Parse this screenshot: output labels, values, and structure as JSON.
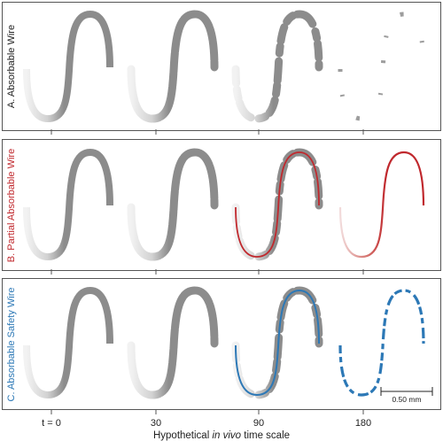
{
  "panels": [
    {
      "id": "absorbable",
      "label": "A. Absorbable Wire",
      "label_color": "#222222",
      "core_color": null
    },
    {
      "id": "partial",
      "label": "B. Partial Absorbable Wire",
      "label_color": "#c0282d",
      "core_color": "#c0282d"
    },
    {
      "id": "safety",
      "label": "C. Absorbable Safety Wire",
      "label_color": "#2c78b6",
      "core_color": "#2c78b6"
    }
  ],
  "timepoints": [
    "t = 0",
    "30",
    "90",
    "180"
  ],
  "axis_title": {
    "before": "Hypothetical ",
    "italic": "in vivo",
    "after": " time scale"
  },
  "scale_bar": {
    "label": "0.50 mm"
  },
  "colors": {
    "wire_gray": "#8c8c8c",
    "wire_light": "#e4e4e4",
    "frame": "#555555"
  },
  "icons": {
    "wire": "sinusoidal-wire-icon"
  }
}
